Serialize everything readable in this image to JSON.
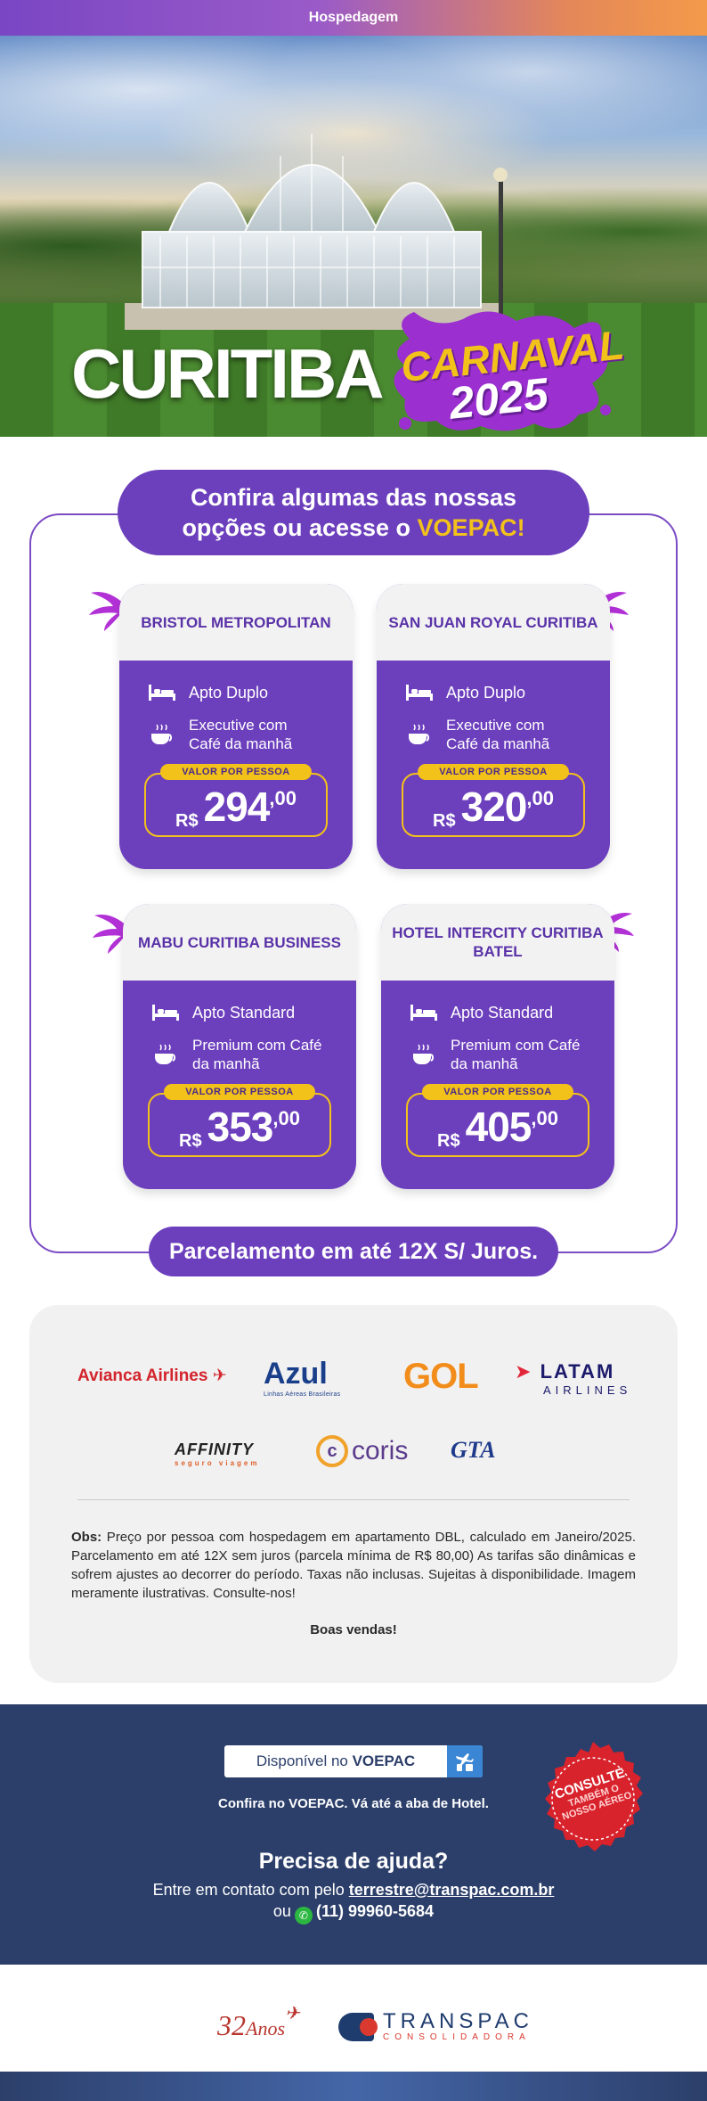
{
  "top_bar": {
    "label": "Hospedagem"
  },
  "hero": {
    "city": "CURITIBA",
    "event": "CARNAVAL",
    "year": "2025"
  },
  "panel": {
    "heading_line1": "Confira algumas das nossas",
    "heading_line2_prefix": "opções ou acesse o ",
    "heading_line2_accent": "VOEPAC!"
  },
  "hotels": [
    {
      "name": "BRISTOL METROPOLITAN",
      "room": "Apto Duplo",
      "plan": "Executive com Café da manhã",
      "price_label": "VALOR POR PESSOA",
      "currency": "R$",
      "price": "294",
      "cents": ",00"
    },
    {
      "name": "SAN JUAN ROYAL CURITIBA",
      "room": "Apto Duplo",
      "plan": "Executive com Café da manhã",
      "price_label": "VALOR POR PESSOA",
      "currency": "R$",
      "price": "320",
      "cents": ",00"
    },
    {
      "name": "MABU CURITIBA BUSINESS",
      "room": "Apto Standard",
      "plan": "Premium com Café da manhã",
      "price_label": "VALOR POR PESSOA",
      "currency": "R$",
      "price": "353",
      "cents": ",00"
    },
    {
      "name": "HOTEL INTERCITY CURITIBA BATEL",
      "room": "Apto Standard",
      "plan": "Premium com Café da manhã",
      "price_label": "VALOR POR PESSOA",
      "currency": "R$",
      "price": "405",
      "cents": ",00"
    }
  ],
  "installment": "Parcelamento em até 12X S/ Juros.",
  "partners": {
    "avianca": "Avianca Airlines",
    "azul": "Azul",
    "azul_sub": "Linhas Aéreas Brasileiras",
    "gol": "GOL",
    "latam": "LATAM",
    "latam_sub": "AIRLINES",
    "affinity": "AFFINITY",
    "affinity_sub": "seguro viagem",
    "coris": "coris",
    "gta": "GTA"
  },
  "obs": {
    "label": "Obs:",
    "text": " Preço por pessoa com hospedagem em apartamento DBL, calculado em Janeiro/2025. Parcelamento em até 12X sem juros (parcela mínima de R$ 80,00) As tarifas são dinâmicas e sofrem ajustes ao decorrer do período. Taxas não inclusas. Sujeitas à disponibilidade. Imagem meramente ilustrativas. Consulte-nos!",
    "closing": "Boas vendas!"
  },
  "footer": {
    "available_prefix": "Disponível no ",
    "available_brand": "VOEPAC",
    "confira": "Confira no VOEPAC. Vá até a aba de Hotel.",
    "seal_line1": "CONSULTE",
    "seal_line2": "TAMBÉM O",
    "seal_line3": "NOSSO AÉREO",
    "help_title": "Precisa de ajuda?",
    "help_prefix": "Entre em contato com pelo ",
    "help_email": "terrestre@transpac.com.br",
    "help_or": "ou",
    "help_phone": "(11) 99960-5684"
  },
  "brand": {
    "years": "32",
    "years_word": "Anos",
    "company": "TRANSPAC",
    "company_sub": "CONSOLIDADORA"
  },
  "colors": {
    "purple": "#6c3fbd",
    "yellow": "#f3c21a",
    "navy": "#2c3f6a"
  }
}
